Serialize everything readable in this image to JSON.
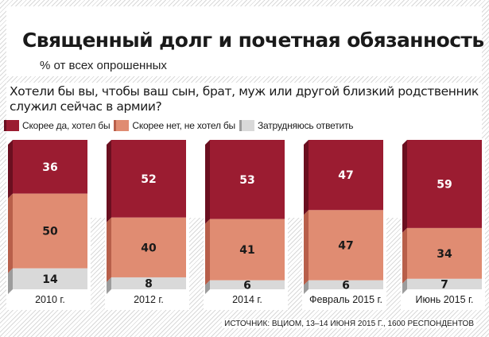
{
  "header": {
    "title": "Священный долг и почетная обязанность",
    "subtitle": "% от всех опрошенных"
  },
  "question": "Хотели бы вы, чтобы ваш сын, брат, муж или другой близкий родственник служил сейчас в армии?",
  "source": "ИСТОЧНИК: ВЦИОМ, 13–14 ИЮНЯ 2015 Г., 1600 РЕСПОНДЕНТОВ",
  "colors": {
    "yes": "#9b1c31",
    "no": "#e08c72",
    "dk": "#d9d9d9"
  },
  "chart_data": {
    "type": "bar",
    "stacked": true,
    "orientation": "vertical",
    "categories": [
      "2010 г.",
      "2012 г.",
      "2014 г.",
      "Февраль 2015 г.",
      "Июнь 2015 г."
    ],
    "series": [
      {
        "name": "Скорее да, хотел бы",
        "values": [
          36,
          52,
          53,
          47,
          59
        ]
      },
      {
        "name": "Скорее нет, не хотел бы",
        "values": [
          50,
          40,
          41,
          47,
          34
        ]
      },
      {
        "name": "Затрудняюсь ответить",
        "values": [
          14,
          8,
          6,
          6,
          7
        ]
      }
    ],
    "ylim": [
      0,
      100
    ],
    "legend": "top-left",
    "data_labels": true,
    "grid": false
  }
}
